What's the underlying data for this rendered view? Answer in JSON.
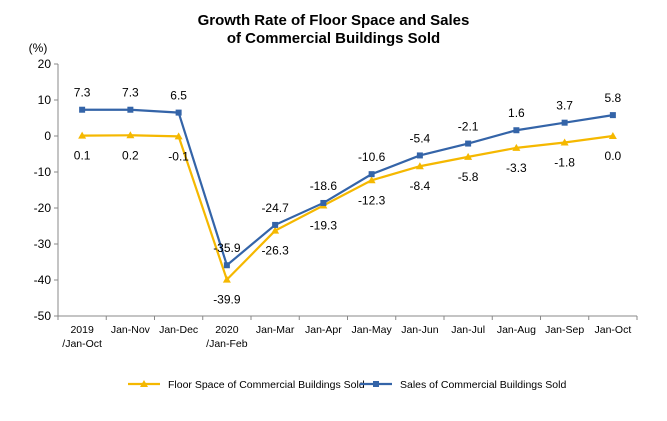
{
  "chart_data": {
    "type": "line",
    "title_lines": [
      "Growth Rate of Floor Space and Sales",
      "of Commercial Buildings Sold"
    ],
    "yunit": "(%)",
    "ylim": [
      -50,
      20
    ],
    "yticks": [
      "20",
      "10",
      "0",
      "-10",
      "-20",
      "-30",
      "-40",
      "-50"
    ],
    "ytick_values": [
      20,
      10,
      0,
      -10,
      -20,
      -30,
      -40,
      -50
    ],
    "categories": [
      [
        "2019",
        "/Jan-Oct"
      ],
      [
        "Jan-Nov"
      ],
      [
        "Jan-Dec"
      ],
      [
        "2020",
        "/Jan-Feb"
      ],
      [
        "Jan-Mar"
      ],
      [
        "Jan-Apr"
      ],
      [
        "Jan-May"
      ],
      [
        "Jan-Jun"
      ],
      [
        "Jan-Jul"
      ],
      [
        "Jan-Aug"
      ],
      [
        "Jan-Sep"
      ],
      [
        "Jan-Oct"
      ]
    ],
    "series": [
      {
        "name": "Floor Space of Commercial Buildings Sold",
        "color": "#F5B800",
        "marker": "triangle",
        "values": [
          0.1,
          0.2,
          -0.1,
          -39.9,
          -26.3,
          -19.3,
          -12.3,
          -8.4,
          -5.8,
          -3.3,
          -1.8,
          0.0
        ],
        "labels": [
          "0.1",
          "0.2",
          "-0.1",
          "-39.9",
          "-26.3",
          "-19.3",
          "-12.3",
          "-8.4",
          "-5.8",
          "-3.3",
          "-1.8",
          "0.0"
        ]
      },
      {
        "name": "Sales of Commercial Buildings Sold",
        "color": "#3464A8",
        "marker": "square",
        "values": [
          7.3,
          7.3,
          6.5,
          -35.9,
          -24.7,
          -18.6,
          -10.6,
          -5.4,
          -2.1,
          1.6,
          3.7,
          5.8
        ],
        "labels": [
          "7.3",
          "7.3",
          "6.5",
          "-35.9",
          "-24.7",
          "-18.6",
          "-10.6",
          "-5.4",
          "-2.1",
          "1.6",
          "3.7",
          "5.8"
        ]
      }
    ],
    "legend_position": "bottom",
    "grid": false
  }
}
